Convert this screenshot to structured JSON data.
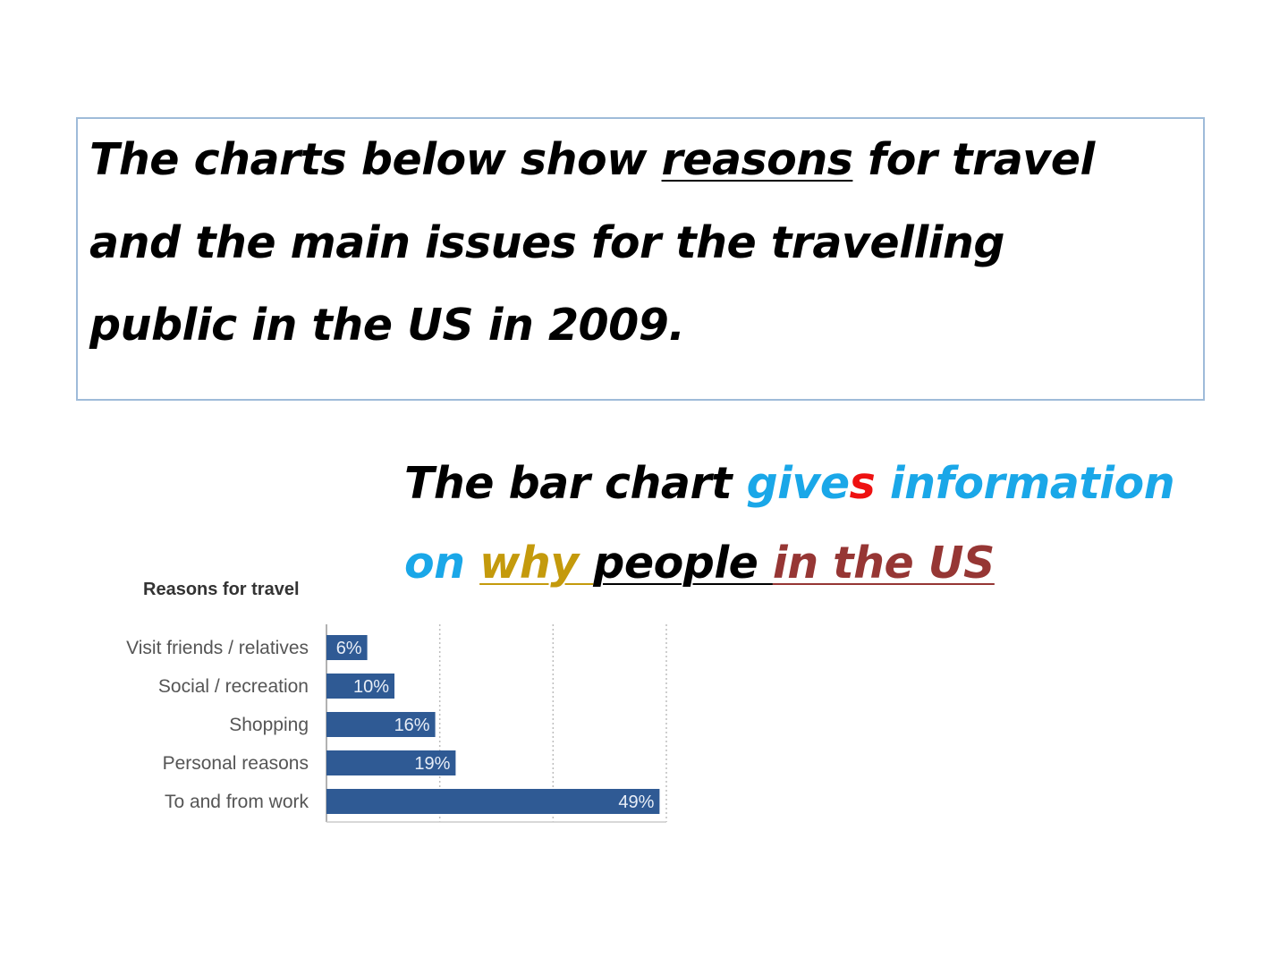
{
  "prompt": {
    "line1_a": "The charts below show ",
    "line1_b": "reasons",
    "line1_c": " for travel",
    "line2": "and the main issues for the travelling",
    "line3": "public in the US in 2009."
  },
  "analysis": {
    "l1_a": "The bar chart ",
    "l1_b": "give",
    "l1_c": "s",
    "l1_d": " information",
    "l2_a": "on ",
    "l2_b": "why ",
    "l2_c": "people ",
    "l2_d": "in the US",
    "colors": {
      "black": "#000000",
      "blue": "#1aa7e8",
      "red": "#ee1111",
      "gold": "#c49a0c",
      "brown": "#963634"
    }
  },
  "chart_data": {
    "type": "bar",
    "orientation": "horizontal",
    "title": "Reasons for travel",
    "categories": [
      "Visit friends / relatives",
      "Social / recreation",
      "Shopping",
      "Personal reasons",
      "To and from work"
    ],
    "values": [
      6,
      10,
      16,
      19,
      49
    ],
    "data_labels": [
      "6%",
      "10%",
      "16%",
      "19%",
      "49%"
    ],
    "xlim": [
      0,
      50
    ],
    "grid": true,
    "bar_color": "#2f5a94"
  }
}
